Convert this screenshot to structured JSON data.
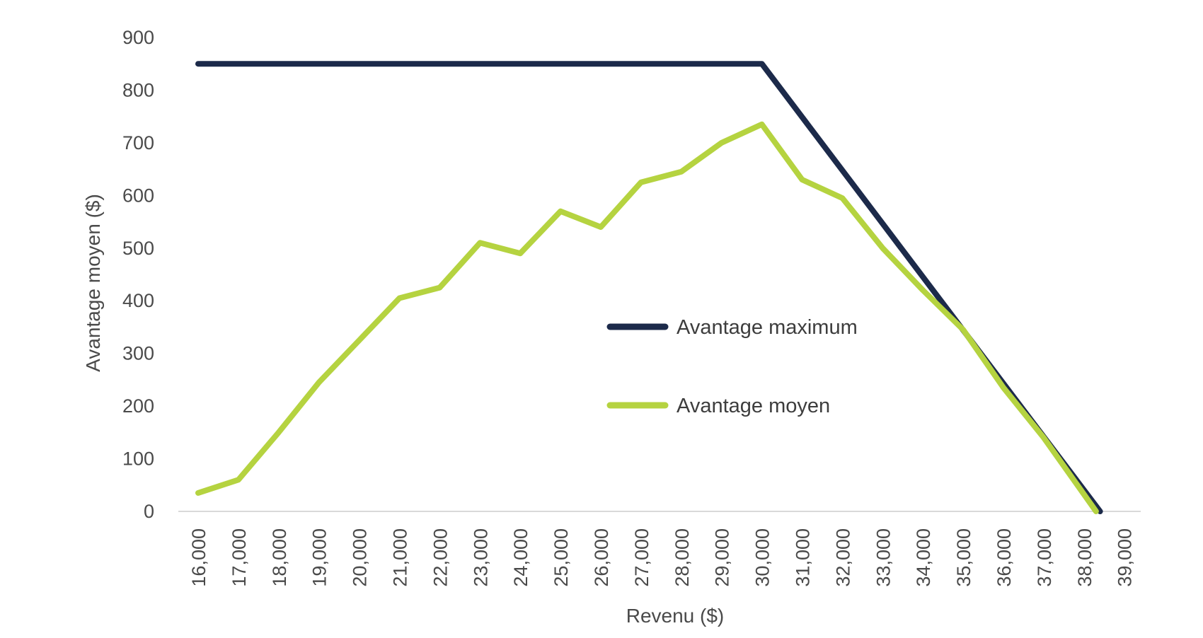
{
  "chart_data": {
    "type": "line",
    "title": "",
    "xlabel": "Revenu ($)",
    "ylabel": "Avantage moyen ($)",
    "ylim": [
      0,
      900
    ],
    "yticks": [
      "0",
      "100",
      "200",
      "300",
      "400",
      "500",
      "600",
      "700",
      "800",
      "900"
    ],
    "ytick_values": [
      0,
      100,
      200,
      300,
      400,
      500,
      600,
      700,
      800,
      900
    ],
    "categories": [
      "16,000",
      "17,000",
      "18,000",
      "19,000",
      "20,000",
      "21,000",
      "22,000",
      "23,000",
      "24,000",
      "25,000",
      "26,000",
      "27,000",
      "28,000",
      "29,000",
      "30,000",
      "31,000",
      "32,000",
      "33,000",
      "34,000",
      "35,000",
      "36,000",
      "37,000",
      "38,000",
      "39,000"
    ],
    "category_values": [
      16000,
      17000,
      18000,
      19000,
      20000,
      21000,
      22000,
      23000,
      24000,
      25000,
      26000,
      27000,
      28000,
      29000,
      30000,
      31000,
      32000,
      33000,
      34000,
      35000,
      36000,
      37000,
      38000,
      39000
    ],
    "grid": false,
    "legend_position": "center-right",
    "series": [
      {
        "name": "Avantage maximum",
        "color": "#1c2a4a",
        "x": [
          16000,
          30000,
          38400
        ],
        "values": [
          850,
          850,
          0
        ]
      },
      {
        "name": "Avantage moyen",
        "color": "#b5d340",
        "x": [
          16000,
          17000,
          18000,
          19000,
          20000,
          21000,
          22000,
          23000,
          24000,
          25000,
          26000,
          27000,
          28000,
          29000,
          30000,
          31000,
          32000,
          33000,
          34000,
          35000,
          36000,
          37000,
          38300
        ],
        "values": [
          35,
          60,
          150,
          245,
          325,
          405,
          425,
          510,
          490,
          570,
          540,
          625,
          645,
          700,
          735,
          630,
          595,
          500,
          420,
          345,
          235,
          140,
          0
        ]
      }
    ]
  }
}
